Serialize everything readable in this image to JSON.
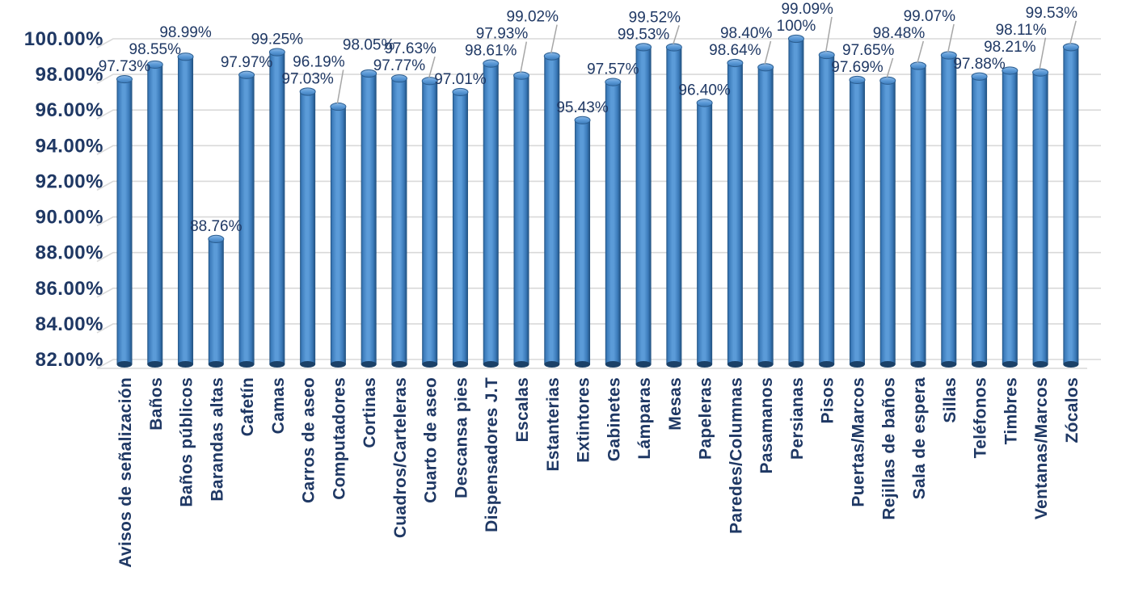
{
  "chart_data": {
    "type": "bar",
    "style": "3d-cylinder",
    "title": "",
    "xlabel": "",
    "ylabel": "",
    "categories": [
      "Avisos de señalización",
      "Baños",
      "Baños públicos",
      "Barandas altas",
      "Cafetín",
      "Camas",
      "Carros de aseo",
      "Computadores",
      "Cortinas",
      "Cuadros/Carteleras",
      "Cuarto de aseo",
      "Descansa pies",
      "Dispensadores J.T",
      "Escalas",
      "Estanterias",
      "Extintores",
      "Gabinetes",
      "Lámparas",
      "Mesas",
      "Papeleras",
      "Paredes/Columnas",
      "Pasamanos",
      "Persianas",
      "Pisos",
      "Puertas/Marcos",
      "Rejillas de baños",
      "Sala de espera",
      "Sillas",
      "Teléfonos",
      "Timbres",
      "Ventanas/Marcos",
      "Zócalos"
    ],
    "values": [
      97.73,
      98.55,
      98.99,
      88.76,
      97.97,
      99.25,
      97.03,
      96.19,
      98.05,
      97.77,
      97.63,
      97.01,
      98.61,
      97.93,
      99.02,
      95.43,
      97.57,
      99.53,
      99.52,
      96.4,
      98.64,
      98.4,
      100,
      99.09,
      97.69,
      97.65,
      98.48,
      99.07,
      97.88,
      98.21,
      98.11,
      99.53
    ],
    "data_labels": [
      "97.73%",
      "98.55%",
      "98.99%",
      "88.76%",
      "97.97%",
      "99.25%",
      "97.03%",
      "96.19%",
      "98.05%",
      "97.77%",
      "97.63%",
      "97.01%",
      "98.61%",
      "97.93%",
      "99.02%",
      "95.43%",
      "97.57%",
      "99.53%",
      "99.52%",
      "96.40%",
      "98.64%",
      "98.40%",
      "100%",
      "99.09%",
      "97.69%",
      "97.65%",
      "98.48%",
      "99.07%",
      "97.88%",
      "98.21%",
      "98.11%",
      "99.53%"
    ],
    "y_axis": {
      "min": 82,
      "max": 100,
      "step": 2,
      "tick_labels": [
        "82.00%",
        "84.00%",
        "86.00%",
        "88.00%",
        "90.00%",
        "92.00%",
        "94.00%",
        "96.00%",
        "98.00%",
        "100.00%"
      ]
    },
    "grid": true,
    "legend": "none",
    "colors": {
      "text": "#1F3864",
      "gridline": "#D9D9D9",
      "leader_line": "#A6A6A6",
      "bar_light": "#5B9BD8",
      "bar_mid": "#3B7AB9",
      "bar_dark": "#1F4E7C",
      "cap_light": "#8FB9E4",
      "cap_fill": "#5E9CD9",
      "cap_edge": "#2B5E91",
      "base_dark": "#1B4168",
      "background": "#FFFFFF"
    }
  }
}
